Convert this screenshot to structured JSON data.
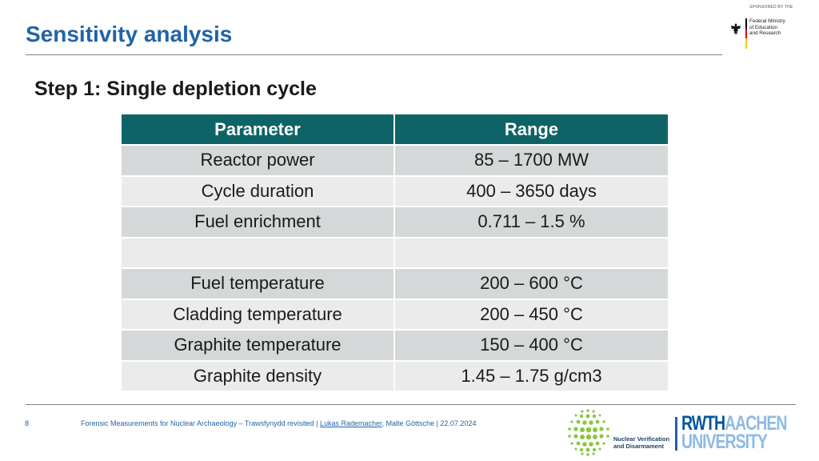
{
  "header": {
    "title": "Sensitivity analysis",
    "sponsor_caption": "SPONSORED BY THE",
    "ministry": [
      "Federal Ministry",
      "of Education",
      "and Research"
    ]
  },
  "subtitle": "Step 1: Single depletion cycle",
  "table": {
    "headers": [
      "Parameter",
      "Range"
    ],
    "rows": [
      [
        "Reactor power",
        "85 – 1700 MW"
      ],
      [
        "Cycle duration",
        "400 – 3650 days"
      ],
      [
        "Fuel enrichment",
        "0.711 – 1.5 %"
      ],
      [
        "",
        ""
      ],
      [
        "Fuel temperature",
        "200 – 600 °C"
      ],
      [
        "Cladding temperature",
        "200 – 450 °C"
      ],
      [
        "Graphite temperature",
        "150 – 400 °C"
      ],
      [
        "Graphite density",
        "1.45 – 1.75 g/cm3"
      ]
    ]
  },
  "footer": {
    "page_number": "8",
    "presentation": "Forensic Measurements for Nuclear Archaeology – Trawsfynydd revisited",
    "sep1": " | ",
    "author_primary": "Lukas Rademacher",
    "coauthor": ", Malte Göttsche",
    "sep2": " | ",
    "date": "22.07.2024",
    "nvd_lines": [
      "Nuclear Verification",
      "and Disarmament"
    ],
    "rwth_line1_a": "RWTH",
    "rwth_line1_b": "AACHEN",
    "rwth_line2": "UNIVERSITY"
  },
  "colors": {
    "title_blue": "#2264a6",
    "table_header_teal": "#0d6366",
    "row_shade_dark": "#d5d8d8",
    "row_shade_light": "#ebebeb",
    "nvd_green": "#8cc63f",
    "rwth_blue": "#00549f",
    "rwth_light_blue": "#8ebae5"
  }
}
